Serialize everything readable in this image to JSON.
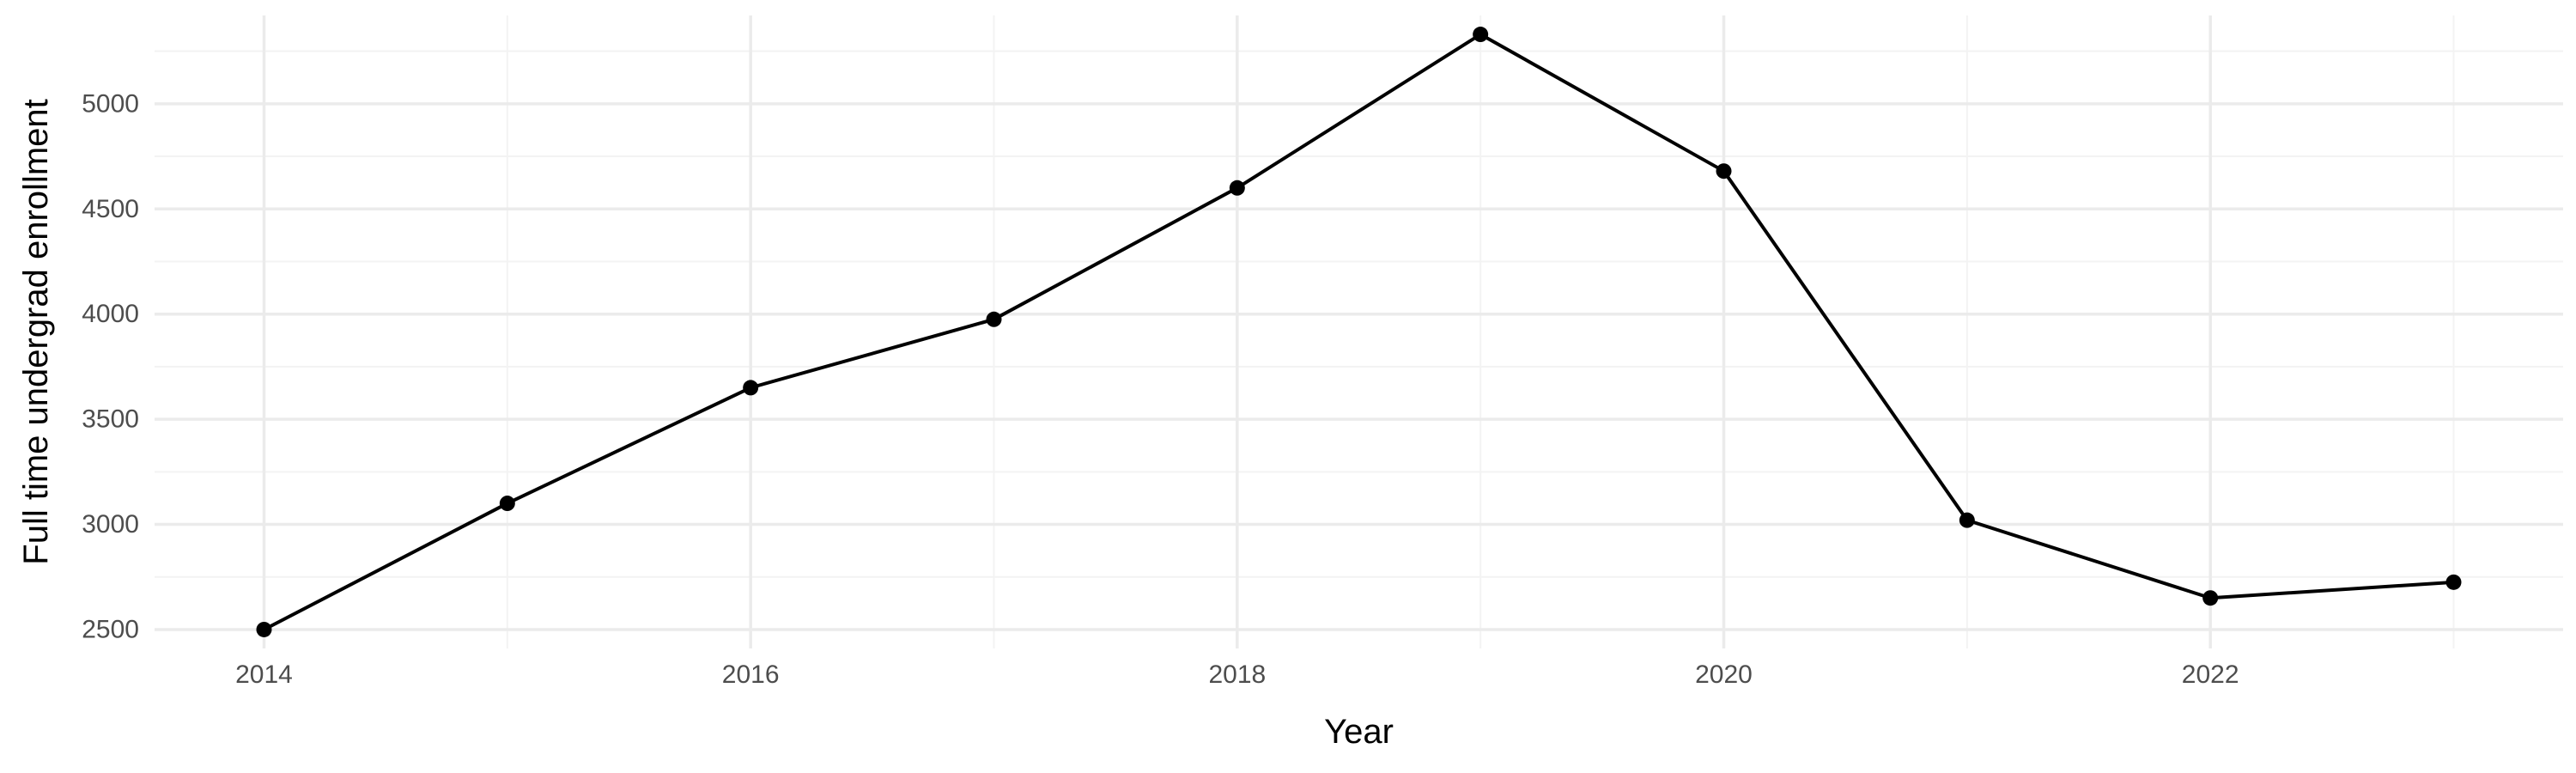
{
  "chart_data": {
    "type": "line",
    "title": "",
    "xlabel": "Year",
    "ylabel": "Full time undergrad enrollment",
    "x": [
      2014,
      2015,
      2016,
      2017,
      2018,
      2019,
      2020,
      2021,
      2022,
      2023
    ],
    "series": [
      {
        "values": [
          2500,
          3100,
          3650,
          3975,
          4600,
          5330,
          4680,
          3020,
          2650,
          2725
        ]
      }
    ],
    "xlim": [
      2013.55,
      2023.45
    ],
    "ylim": [
      2410,
      5420
    ],
    "x_ticks": [
      2014,
      2016,
      2018,
      2020,
      2022
    ],
    "x_tick_labels": [
      "2014",
      "2016",
      "2018",
      "2020",
      "2022"
    ],
    "y_ticks": [
      2500,
      3000,
      3500,
      4000,
      4500,
      5000
    ],
    "y_tick_labels": [
      "2500",
      "3000",
      "3500",
      "4000",
      "4500",
      "5000"
    ],
    "grid": true,
    "legend": "none",
    "line_color": "#000000",
    "grid_color": "#ebebeb"
  }
}
